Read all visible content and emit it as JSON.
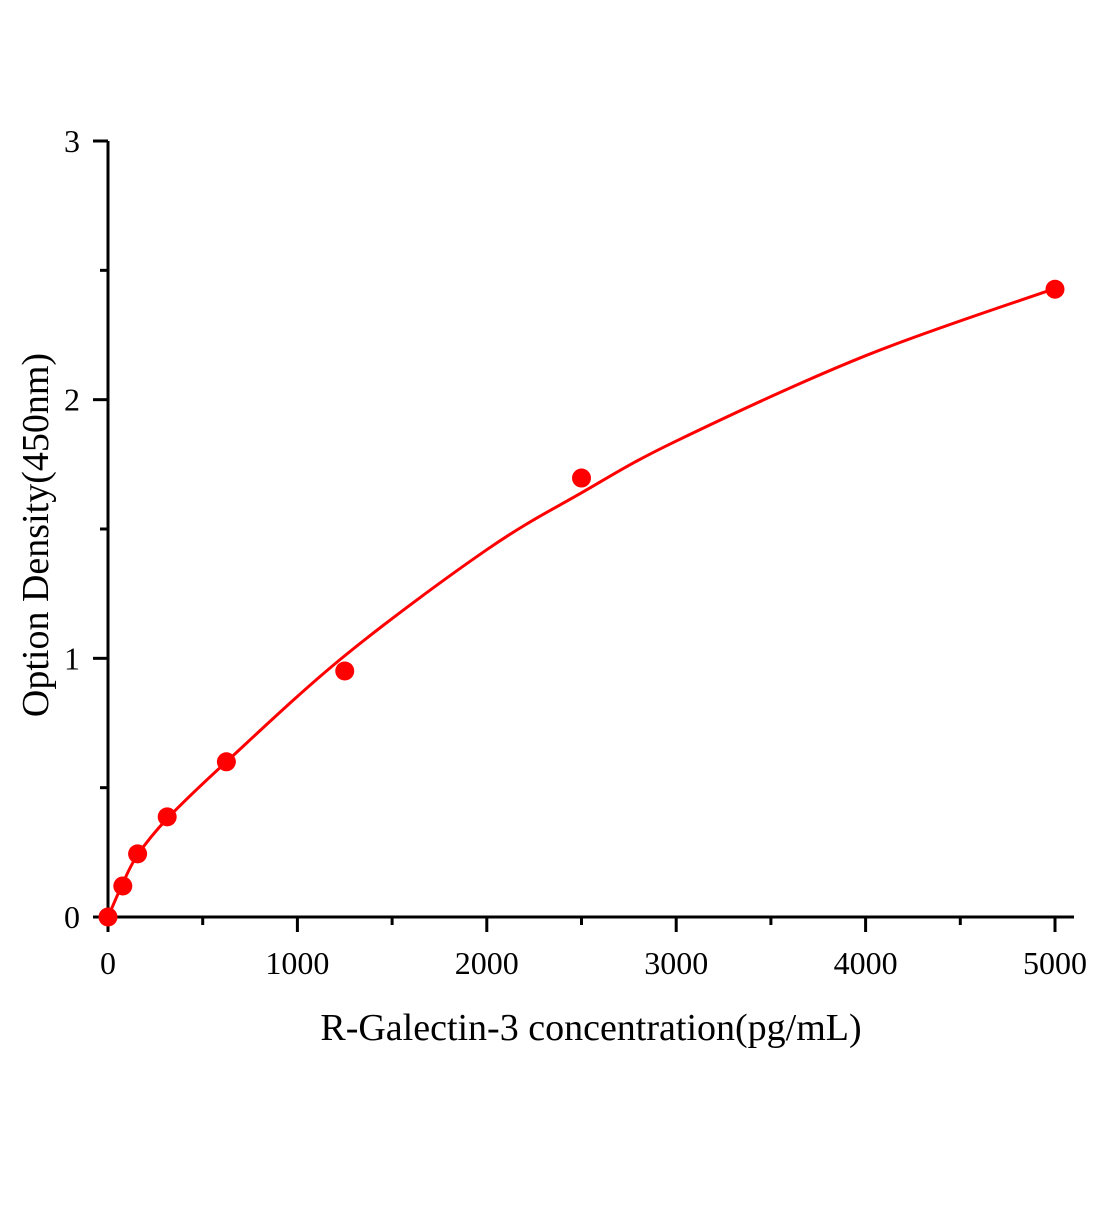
{
  "chart_data": {
    "type": "scatter",
    "title": "",
    "xlabel": "R-Galectin-3 concentration(pg/mL)",
    "ylabel": "Option Density(450nm)",
    "xlim": [
      0,
      5000
    ],
    "ylim": [
      0,
      3
    ],
    "xticks": [
      0,
      1000,
      2000,
      3000,
      4000,
      5000
    ],
    "yticks": [
      0,
      1,
      2,
      3
    ],
    "x_minor_step": 500,
    "y_minor_step": 0.5,
    "grid": false,
    "color": "#ff0000",
    "series": [
      {
        "x": [
          0,
          78.125,
          156.25,
          312.5,
          625,
          1250,
          2500,
          5000
        ],
        "y": [
          0,
          0.12,
          0.244,
          0.387,
          0.6,
          0.951,
          1.697,
          2.427
        ]
      }
    ],
    "fit_curve": {
      "x": [
        0,
        78.125,
        156.25,
        312.5,
        625,
        1250,
        2000,
        2500,
        3000,
        4000,
        5000
      ],
      "y": [
        0,
        0.13,
        0.24,
        0.38,
        0.6,
        1.01,
        1.42,
        1.64,
        1.84,
        2.17,
        2.43
      ]
    }
  }
}
